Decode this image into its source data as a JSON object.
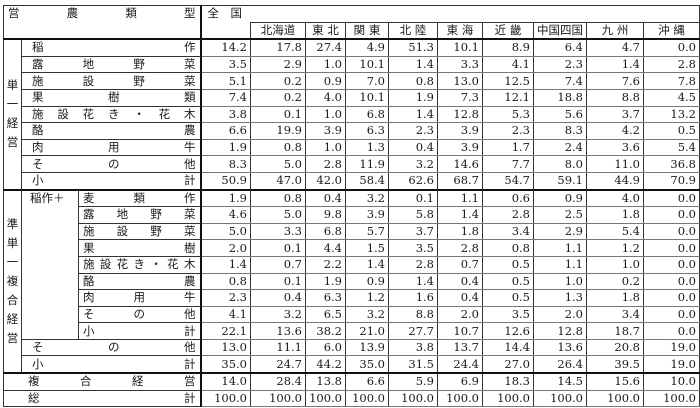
{
  "header": {
    "type_label": "営　農　類　型",
    "national": "全　国",
    "regions": [
      "北海道",
      "東 北",
      "関 東",
      "北 陸",
      "東 海",
      "近 畿",
      "中国四国",
      "九 州",
      "沖 縄"
    ]
  },
  "groups": {
    "single": "単一経営",
    "semi": "準単一複合経営",
    "rice_plus": "稲作＋"
  },
  "rows": [
    {
      "label": "稲作",
      "values": [
        "14.2",
        "17.8",
        "27.4",
        "4.9",
        "51.3",
        "10.1",
        "8.9",
        "6.4",
        "4.7",
        "0.0"
      ]
    },
    {
      "label": "露地野菜",
      "values": [
        "3.5",
        "2.9",
        "1.0",
        "10.1",
        "1.4",
        "3.3",
        "4.1",
        "2.3",
        "1.4",
        "2.8"
      ]
    },
    {
      "label": "施設野菜",
      "values": [
        "5.1",
        "0.2",
        "0.9",
        "7.0",
        "0.8",
        "13.0",
        "12.5",
        "7.4",
        "7.6",
        "7.8"
      ]
    },
    {
      "label": "果樹類",
      "values": [
        "7.4",
        "0.2",
        "4.0",
        "10.1",
        "1.9",
        "7.3",
        "12.1",
        "18.8",
        "8.8",
        "4.5"
      ]
    },
    {
      "label": "施設花き・花木",
      "values": [
        "3.8",
        "0.1",
        "1.0",
        "6.8",
        "1.4",
        "12.8",
        "5.3",
        "5.6",
        "3.7",
        "13.2"
      ]
    },
    {
      "label": "酪農",
      "values": [
        "6.6",
        "19.9",
        "3.9",
        "6.3",
        "2.3",
        "3.9",
        "2.3",
        "8.3",
        "4.2",
        "0.5"
      ]
    },
    {
      "label": "肉用牛",
      "values": [
        "1.9",
        "0.8",
        "1.0",
        "1.3",
        "0.4",
        "3.9",
        "1.7",
        "2.4",
        "3.6",
        "5.4"
      ]
    },
    {
      "label": "その他",
      "values": [
        "8.3",
        "5.0",
        "2.8",
        "11.9",
        "3.2",
        "14.6",
        "7.7",
        "8.0",
        "11.0",
        "36.8"
      ]
    },
    {
      "label": "小計",
      "values": [
        "50.9",
        "47.0",
        "42.0",
        "58.4",
        "62.6",
        "68.7",
        "54.7",
        "59.1",
        "44.9",
        "70.9"
      ]
    },
    {
      "label": "麦類作",
      "values": [
        "1.9",
        "0.8",
        "0.4",
        "3.2",
        "0.1",
        "1.1",
        "0.6",
        "0.9",
        "4.0",
        "0.0"
      ]
    },
    {
      "label": "露地野菜",
      "values": [
        "4.6",
        "5.0",
        "9.8",
        "3.9",
        "5.8",
        "1.4",
        "2.8",
        "2.5",
        "1.8",
        "0.0"
      ]
    },
    {
      "label": "施設野菜",
      "values": [
        "5.0",
        "3.3",
        "6.8",
        "5.7",
        "3.7",
        "1.8",
        "3.4",
        "2.9",
        "5.4",
        "0.0"
      ]
    },
    {
      "label": "果樹",
      "values": [
        "2.0",
        "0.1",
        "4.4",
        "1.5",
        "3.5",
        "2.8",
        "0.8",
        "1.1",
        "1.2",
        "0.0"
      ]
    },
    {
      "label": "施設花き・花木",
      "values": [
        "1.4",
        "0.7",
        "2.2",
        "1.4",
        "2.8",
        "0.7",
        "0.5",
        "1.1",
        "1.0",
        "0.0"
      ]
    },
    {
      "label": "酪農",
      "values": [
        "0.8",
        "0.1",
        "1.9",
        "0.9",
        "1.4",
        "0.4",
        "0.5",
        "1.0",
        "0.2",
        "0.0"
      ]
    },
    {
      "label": "肉用牛",
      "values": [
        "2.3",
        "0.4",
        "6.3",
        "1.2",
        "1.6",
        "0.4",
        "0.5",
        "1.3",
        "1.8",
        "0.0"
      ]
    },
    {
      "label": "その他",
      "values": [
        "4.1",
        "3.2",
        "6.5",
        "3.2",
        "8.8",
        "2.0",
        "3.5",
        "2.0",
        "3.4",
        "0.0"
      ]
    },
    {
      "label": "小計",
      "values": [
        "22.1",
        "13.6",
        "38.2",
        "21.0",
        "27.7",
        "10.7",
        "12.6",
        "12.8",
        "18.7",
        "0.0"
      ]
    },
    {
      "label": "その他",
      "values": [
        "13.0",
        "11.1",
        "6.0",
        "13.9",
        "3.8",
        "13.7",
        "14.4",
        "13.6",
        "20.8",
        "19.0"
      ]
    },
    {
      "label": "小計",
      "values": [
        "35.0",
        "24.7",
        "44.2",
        "35.0",
        "31.5",
        "24.4",
        "27.0",
        "26.4",
        "39.5",
        "19.0"
      ]
    },
    {
      "label": "複合経営",
      "values": [
        "14.0",
        "28.4",
        "13.8",
        "6.6",
        "5.9",
        "6.9",
        "18.3",
        "14.5",
        "15.6",
        "10.0"
      ]
    },
    {
      "label": "総計",
      "values": [
        "100.0",
        "100.0",
        "100.0",
        "100.0",
        "100.0",
        "100.0",
        "100.0",
        "100.0",
        "100.0",
        "100.0"
      ]
    }
  ]
}
